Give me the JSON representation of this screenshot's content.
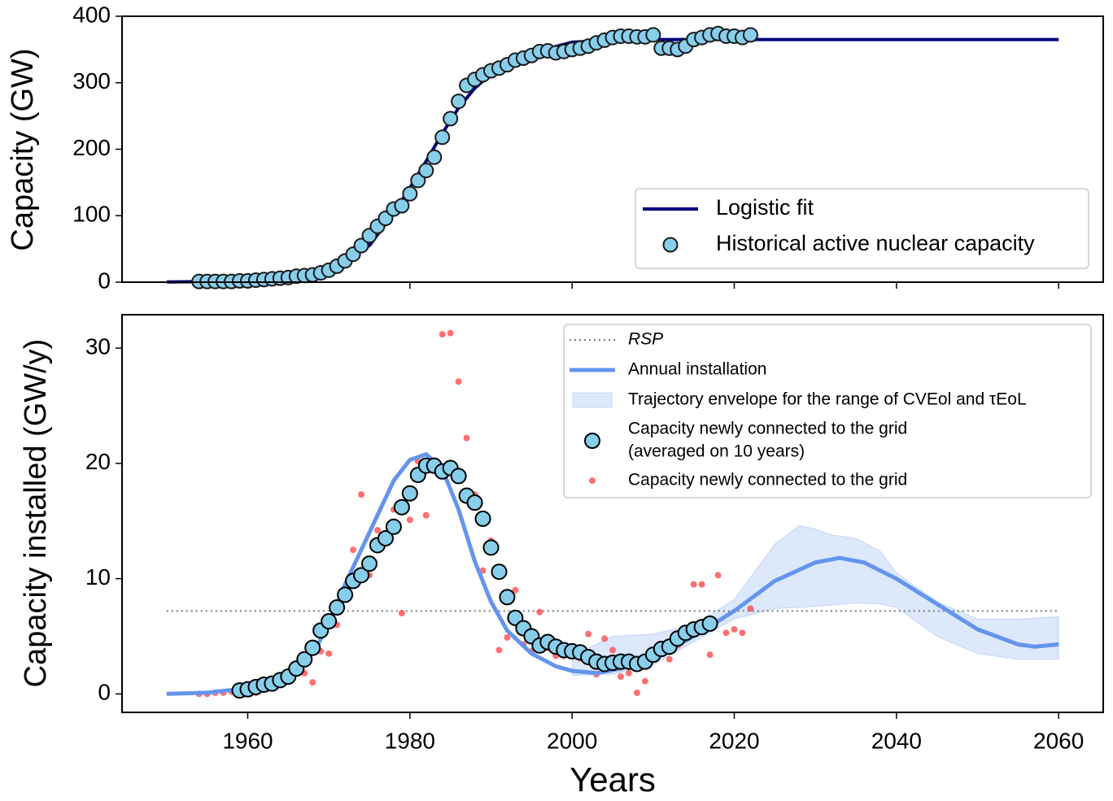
{
  "chart_data": [
    {
      "type": "line",
      "ylabel": "Capacity (GW)",
      "xlim": [
        1944.5,
        2065.5
      ],
      "ylim": [
        0,
        400
      ],
      "xticks": [
        1960,
        1980,
        2000,
        2020,
        2040,
        2060
      ],
      "xticklabels": false,
      "yticks": [
        0,
        100,
        200,
        300,
        400
      ],
      "legend": "lower right",
      "series": [
        {
          "name": "Logistic fit",
          "type": "line",
          "color": "#00007f",
          "x": [
            1950,
            1955,
            1960,
            1965,
            1970,
            1975,
            1978,
            1980,
            1982,
            1984,
            1986,
            1988,
            1990,
            1995,
            2000,
            2005,
            2010,
            2060
          ],
          "values": [
            0.3,
            0.9,
            2.7,
            8,
            22,
            55,
            104,
            142,
            182,
            224,
            262,
            292,
            313,
            345,
            361,
            364,
            365,
            365
          ]
        },
        {
          "name": "Historical active nuclear capacity",
          "type": "scatter",
          "color": "#87ceeb",
          "edgecolor": "#1a1a1a",
          "x": [
            1954,
            1955,
            1956,
            1957,
            1958,
            1959,
            1960,
            1961,
            1962,
            1963,
            1964,
            1965,
            1966,
            1967,
            1968,
            1969,
            1970,
            1971,
            1972,
            1973,
            1974,
            1975,
            1976,
            1977,
            1978,
            1979,
            1980,
            1981,
            1982,
            1983,
            1984,
            1985,
            1986,
            1987,
            1988,
            1989,
            1990,
            1991,
            1992,
            1993,
            1994,
            1995,
            1996,
            1997,
            1998,
            1999,
            2000,
            2001,
            2002,
            2003,
            2004,
            2005,
            2006,
            2007,
            2008,
            2009,
            2010,
            2011,
            2012,
            2013,
            2014,
            2015,
            2016,
            2017,
            2018,
            2019,
            2020,
            2021,
            2022
          ],
          "values": [
            1,
            1,
            1,
            1,
            1,
            2,
            2,
            3,
            4,
            5,
            6,
            7,
            9,
            10,
            11,
            14,
            18,
            24,
            32,
            42,
            55,
            70,
            84,
            96,
            110,
            115,
            133,
            153,
            168,
            188,
            218,
            246,
            272,
            296,
            305,
            312,
            318,
            322,
            327,
            334,
            337,
            341,
            347,
            348,
            345,
            347,
            350,
            352,
            355,
            360,
            364,
            368,
            370,
            370,
            369,
            369,
            372,
            352,
            352,
            350,
            355,
            365,
            368,
            372,
            374,
            370,
            370,
            368,
            372
          ]
        }
      ]
    },
    {
      "type": "line",
      "xlabel": "Years",
      "ylabel": "Capacity installed (GW/y)",
      "xlim": [
        1944.5,
        2065.5
      ],
      "ylim": [
        -1.6,
        32.9
      ],
      "xticks": [
        1960,
        1980,
        2000,
        2020,
        2040,
        2060
      ],
      "xticklabels": true,
      "yticks": [
        0,
        10,
        20,
        30
      ],
      "legend": "upper right",
      "series": [
        {
          "name": "RSP",
          "type": "dotted",
          "color": "#808080",
          "x": [
            1950,
            2060
          ],
          "values": [
            7.2,
            7.2
          ]
        },
        {
          "name": "Annual installation",
          "type": "line",
          "color": "#6495ed",
          "x": [
            1950,
            1955,
            1960,
            1963,
            1965,
            1968,
            1970,
            1972,
            1975,
            1978,
            1980,
            1982,
            1984,
            1986,
            1988,
            1990,
            1992,
            1995,
            1998,
            2000,
            2003,
            2006,
            2010,
            2015,
            2020,
            2025,
            2030,
            2033,
            2036,
            2040,
            2045,
            2050,
            2055,
            2057,
            2060
          ],
          "values": [
            0,
            0.1,
            0.5,
            1,
            1.8,
            3.5,
            6,
            9.5,
            14,
            18.5,
            20.3,
            20.8,
            19.5,
            16,
            11.5,
            8,
            5.5,
            3.5,
            2.4,
            2,
            1.8,
            2.2,
            3.2,
            5,
            7.2,
            9.8,
            11.4,
            11.8,
            11.4,
            10,
            7.8,
            5.6,
            4.3,
            4.1,
            4.3
          ]
        },
        {
          "name": "Trajectory envelope for the range of CVEol and τEoL",
          "type": "band",
          "color": "#6495ed",
          "x": [
            2000,
            2005,
            2010,
            2015,
            2020,
            2025,
            2028,
            2030,
            2032,
            2035,
            2038,
            2040,
            2045,
            2050,
            2055,
            2060
          ],
          "upper": [
            3.3,
            5,
            5.2,
            6,
            8.2,
            13,
            14.6,
            14.3,
            13.8,
            13.5,
            12.4,
            10.5,
            8,
            6.5,
            6.5,
            6.7
          ],
          "lower": [
            1.6,
            1.7,
            2.5,
            4.5,
            6.5,
            7.4,
            7.5,
            7.6,
            7.7,
            7.9,
            7.8,
            7.5,
            5,
            3.5,
            3,
            3
          ]
        },
        {
          "name": [
            "Capacity newly connected to the grid",
            "(averaged on 10 years)"
          ],
          "type": "scatter",
          "color": "#87ceeb",
          "edgecolor": "#000000",
          "x": [
            1959,
            1960,
            1961,
            1962,
            1963,
            1964,
            1965,
            1966,
            1967,
            1968,
            1969,
            1970,
            1971,
            1972,
            1973,
            1974,
            1975,
            1976,
            1977,
            1978,
            1979,
            1980,
            1981,
            1982,
            1983,
            1984,
            1985,
            1986,
            1987,
            1988,
            1989,
            1990,
            1991,
            1992,
            1993,
            1994,
            1995,
            1996,
            1997,
            1998,
            1999,
            2000,
            2001,
            2002,
            2003,
            2004,
            2005,
            2006,
            2007,
            2008,
            2009,
            2010,
            2011,
            2012,
            2013,
            2014,
            2015,
            2016,
            2017
          ],
          "values": [
            0.3,
            0.4,
            0.6,
            0.8,
            0.9,
            1.2,
            1.5,
            2.2,
            3.0,
            4.0,
            5.5,
            6.3,
            7.5,
            8.6,
            9.8,
            10.3,
            11.3,
            12.9,
            13.5,
            14.5,
            16.2,
            17.4,
            19.0,
            19.8,
            19.8,
            19.3,
            19.6,
            18.9,
            17.2,
            16.6,
            15.2,
            12.7,
            10.6,
            8.4,
            6.6,
            5.7,
            5.0,
            4.2,
            4.5,
            4.1,
            3.8,
            3.7,
            3.6,
            3.2,
            2.8,
            2.6,
            2.7,
            2.8,
            2.8,
            2.6,
            2.8,
            3.4,
            3.9,
            4.1,
            4.8,
            5.3,
            5.6,
            5.8,
            6.1
          ]
        },
        {
          "name": "Capacity newly connected to the grid",
          "type": "dots",
          "color": "#ff4040",
          "x": [
            1954,
            1955,
            1956,
            1957,
            1958,
            1959,
            1960,
            1961,
            1962,
            1963,
            1964,
            1965,
            1966,
            1967,
            1968,
            1969,
            1970,
            1971,
            1972,
            1973,
            1974,
            1975,
            1976,
            1977,
            1978,
            1979,
            1980,
            1981,
            1982,
            1983,
            1984,
            1985,
            1986,
            1987,
            1988,
            1989,
            1990,
            1991,
            1992,
            1993,
            1994,
            1995,
            1996,
            1997,
            1998,
            1999,
            2000,
            2001,
            2002,
            2003,
            2004,
            2005,
            2006,
            2007,
            2008,
            2009,
            2010,
            2011,
            2012,
            2013,
            2014,
            2015,
            2016,
            2017,
            2018,
            2019,
            2020,
            2021,
            2022
          ],
          "values": [
            0,
            0,
            0.1,
            0.1,
            0.2,
            0.4,
            0.6,
            0.1,
            0.8,
            1.0,
            1.2,
            1.5,
            2.3,
            1.8,
            1.0,
            3.7,
            3.5,
            6.0,
            8.5,
            12.5,
            17.3,
            10.3,
            14.2,
            13.7,
            16.0,
            7.0,
            15.1,
            20.2,
            15.5,
            19.7,
            31.2,
            31.3,
            27.1,
            22.2,
            17.3,
            10.7,
            13.3,
            3.8,
            4.9,
            9.0,
            4.3,
            3.7,
            7.1,
            4.0,
            3.3,
            3.3,
            3.8,
            3.1,
            5.2,
            1.7,
            4.8,
            3.8,
            1.5,
            1.8,
            0.1,
            1.1,
            3.3,
            4.1,
            3.0,
            4.2,
            4.7,
            9.5,
            9.5,
            3.4,
            10.3,
            5.3,
            5.6,
            5.3,
            7.4
          ]
        }
      ]
    }
  ]
}
